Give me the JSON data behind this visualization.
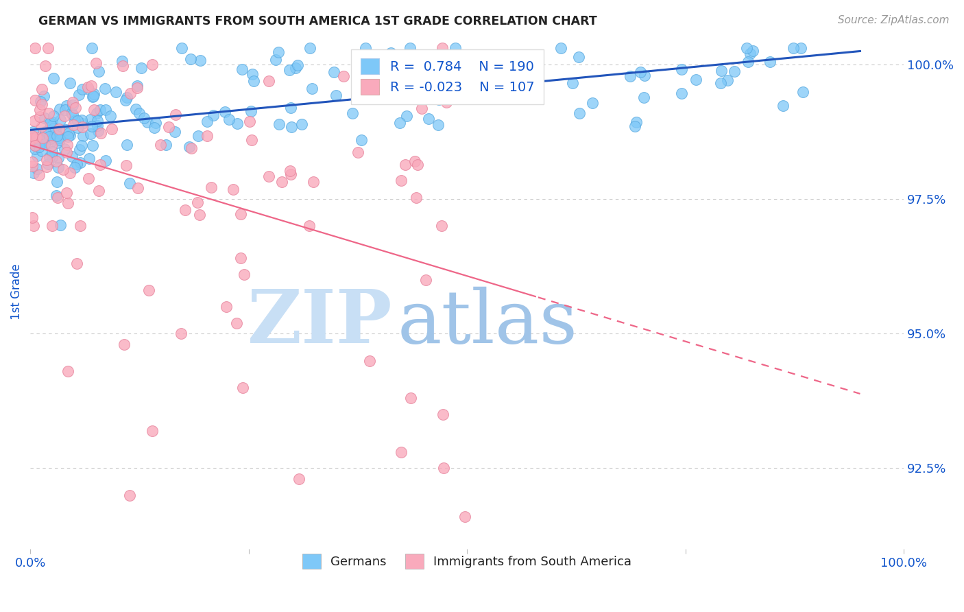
{
  "title": "GERMAN VS IMMIGRANTS FROM SOUTH AMERICA 1ST GRADE CORRELATION CHART",
  "source": "Source: ZipAtlas.com",
  "ylabel": "1st Grade",
  "ylabel_right_ticks": [
    92.5,
    95.0,
    97.5,
    100.0
  ],
  "ylabel_right_labels": [
    "92.5%",
    "95.0%",
    "97.5%",
    "100.0%"
  ],
  "xmin": 0.0,
  "xmax": 100.0,
  "ymin": 91.0,
  "ymax": 100.55,
  "blue_R": 0.784,
  "blue_N": 190,
  "pink_R": -0.023,
  "pink_N": 107,
  "blue_color": "#7EC8F8",
  "pink_color": "#F9AABC",
  "blue_line_color": "#2255BB",
  "pink_line_color": "#EE6688",
  "legend_text_color": "#1155CC",
  "watermark_zip_color": "#C8DFF5",
  "watermark_atlas_color": "#A0C4E8",
  "background_color": "#FFFFFF",
  "title_color": "#222222",
  "axis_label_color": "#1155CC",
  "grid_color": "#CCCCCC",
  "source_color": "#999999",
  "blue_edge_color": "#5AAAE0",
  "pink_edge_color": "#E888A0"
}
